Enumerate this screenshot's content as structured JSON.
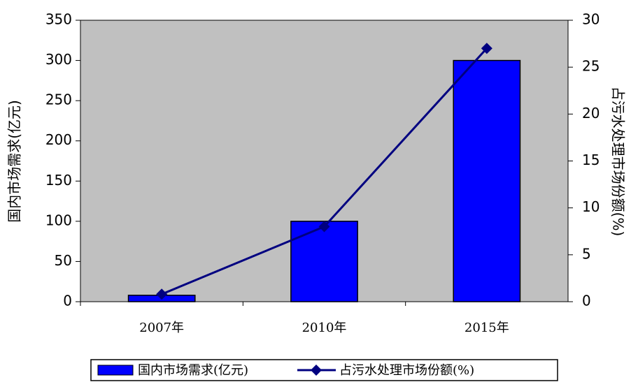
{
  "chart_data": {
    "type": "bar",
    "categories": [
      "2007年",
      "2010年",
      "2015年"
    ],
    "y_label": "国内市场需求(亿元)",
    "y2_label": "占污水处理市场份额(%)",
    "series": [
      {
        "name": "国内市场需求(亿元)",
        "type": "bar",
        "color": "#0000ff",
        "values": [
          8,
          100,
          300
        ]
      },
      {
        "name": "占污水处理市场份额(%)",
        "type": "line",
        "axis": "y2",
        "color": "#000080",
        "values": [
          0.8,
          8,
          27
        ]
      }
    ],
    "ylim": [
      0,
      350
    ],
    "yticks": [
      0,
      50,
      100,
      150,
      200,
      250,
      300,
      350
    ],
    "y2lim": [
      0,
      30
    ],
    "y2ticks": [
      0,
      5,
      10,
      15,
      20,
      25,
      30
    ],
    "plot_background": "#c0c0c0",
    "legend": "bottom"
  }
}
